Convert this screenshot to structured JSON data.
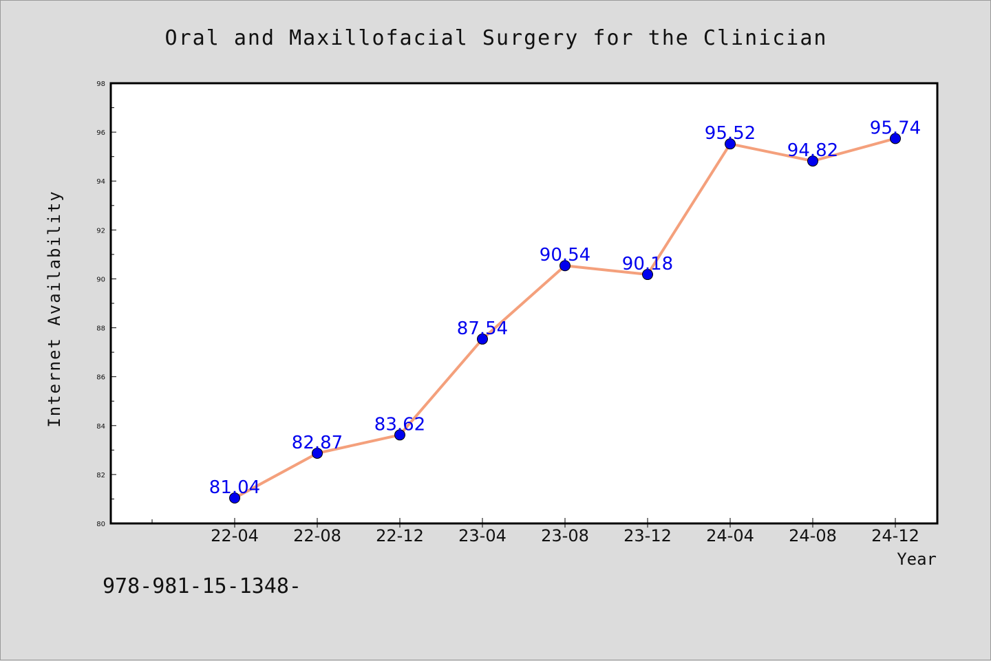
{
  "footer_text": "978-981-15-1348-",
  "colors": {
    "background": "#dcdcdc",
    "plot_background": "#ffffff",
    "line": "#f4a07c",
    "marker": "#0000ee",
    "data_label": "#0000ee"
  },
  "chart_data": {
    "type": "line",
    "title": "Oral and Maxillofacial Surgery for the Clinician",
    "xlabel": "Year",
    "ylabel": "Internet Availability",
    "categories": [
      "22-04",
      "22-08",
      "22-12",
      "23-04",
      "23-08",
      "23-12",
      "24-04",
      "24-08",
      "24-12"
    ],
    "series": [
      {
        "values": [
          81.04,
          82.87,
          83.62,
          87.54,
          90.54,
          90.18,
          95.52,
          94.82,
          95.74
        ],
        "labels": [
          "81.04",
          "82.87",
          "83.62",
          "87.54",
          "90.54",
          "90.18",
          "95.52",
          "94.82",
          "95.74"
        ]
      }
    ],
    "ylim": [
      80,
      98
    ],
    "yticks": [
      "80",
      "82",
      "84",
      "86",
      "88",
      "90",
      "92",
      "94",
      "96",
      "98"
    ],
    "grid": false,
    "legend": "none"
  }
}
